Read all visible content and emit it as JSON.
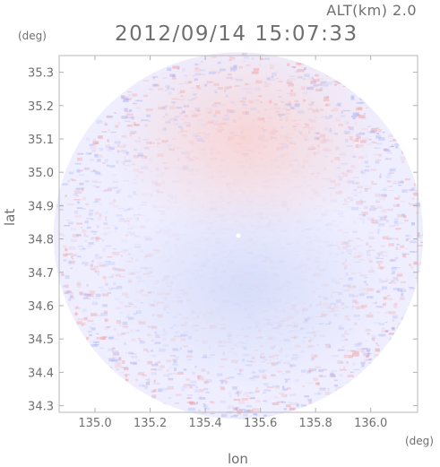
{
  "header": {
    "altitude_label": "ALT(km) 2.0",
    "timestamp": "2012/09/14 15:07:33"
  },
  "chart_data": {
    "type": "heatmap",
    "title": "2012/09/14 15:07:33",
    "subtitle": "ALT(km) 2.0",
    "xlabel": "lon",
    "ylabel": "lat",
    "xunit": "(deg)",
    "yunit": "(deg)",
    "xlim": [
      134.87,
      136.17
    ],
    "ylim": [
      34.28,
      35.35
    ],
    "xticks": [
      135.0,
      135.2,
      135.4,
      135.6,
      135.8,
      136.0
    ],
    "xtick_labels": [
      "135.0",
      "135.2",
      "135.4",
      "135.6",
      "135.8",
      "136.0"
    ],
    "yticks": [
      34.3,
      34.4,
      34.5,
      34.6,
      34.7,
      34.8,
      34.9,
      35.0,
      35.1,
      35.2,
      35.3
    ],
    "ytick_labels": [
      "34.3",
      "34.4",
      "34.5",
      "34.6",
      "34.7",
      "34.8",
      "34.9",
      "35.0",
      "35.1",
      "35.2",
      "35.3"
    ],
    "radar_center": [
      135.52,
      34.81
    ],
    "radar_radius_lon": 0.67,
    "radar_radius_lat": 0.55,
    "colors": {
      "positive": "#f2a0a0",
      "negative": "#a8b0f2",
      "neutral": "#eeeeff"
    },
    "regions": [
      {
        "label": "north-positive",
        "lon": 135.55,
        "lat": 35.1,
        "value": 0.35
      },
      {
        "label": "south-negative",
        "lon": 135.55,
        "lat": 34.65,
        "value": -0.4
      }
    ]
  }
}
